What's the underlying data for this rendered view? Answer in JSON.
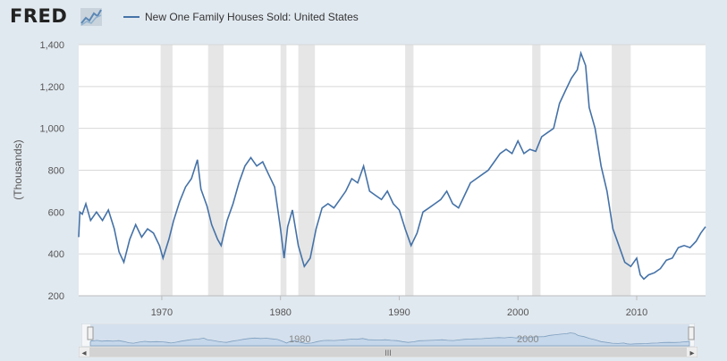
{
  "header": {
    "logo_text": "FRED",
    "legend_label": "New One Family Houses Sold: United States",
    "series_color": "#4572a7"
  },
  "recession_color": "#e6e6e6",
  "navigator": {
    "labels": [
      "1980",
      "2000"
    ]
  },
  "scrollbar": {
    "grip": "III",
    "left_arrow": "◂",
    "right_arrow": "▸"
  },
  "chart_data": {
    "type": "line",
    "title": "",
    "xlabel": "",
    "ylabel": "(Thousands)",
    "xlim": [
      1963.0,
      2015.8
    ],
    "ylim": [
      200,
      1400
    ],
    "yticks": [
      200,
      400,
      600,
      800,
      1000,
      1200,
      1400
    ],
    "ytick_labels": [
      "200",
      "400",
      "600",
      "800",
      "1,000",
      "1,200",
      "1,400"
    ],
    "xticks": [
      1970,
      1980,
      1990,
      2000,
      2010
    ],
    "xtick_labels": [
      "1970",
      "1980",
      "1990",
      "2000",
      "2010"
    ],
    "grid": true,
    "recessions": [
      [
        1969.9,
        1970.9
      ],
      [
        1973.9,
        1975.2
      ],
      [
        1980.0,
        1980.5
      ],
      [
        1981.5,
        1982.9
      ],
      [
        1990.5,
        1991.2
      ],
      [
        2001.2,
        2001.9
      ],
      [
        2007.9,
        2009.5
      ]
    ],
    "series": [
      {
        "name": "New One Family Houses Sold: United States",
        "x": [
          1963.0,
          1963.1,
          1963.3,
          1963.6,
          1964.0,
          1964.5,
          1965.0,
          1965.5,
          1966.0,
          1966.4,
          1966.8,
          1967.3,
          1967.8,
          1968.3,
          1968.8,
          1969.3,
          1969.8,
          1970.1,
          1970.6,
          1971.0,
          1971.5,
          1972.0,
          1972.5,
          1973.0,
          1973.3,
          1973.8,
          1974.2,
          1974.7,
          1975.0,
          1975.5,
          1976.0,
          1976.5,
          1977.0,
          1977.5,
          1978.0,
          1978.5,
          1979.0,
          1979.5,
          1980.0,
          1980.3,
          1980.6,
          1981.0,
          1981.5,
          1982.0,
          1982.5,
          1983.0,
          1983.5,
          1984.0,
          1984.5,
          1985.0,
          1985.5,
          1986.0,
          1986.5,
          1987.0,
          1987.5,
          1988.0,
          1988.5,
          1989.0,
          1989.5,
          1990.0,
          1990.5,
          1991.0,
          1991.5,
          1992.0,
          1992.5,
          1993.0,
          1993.5,
          1994.0,
          1994.5,
          1995.0,
          1995.5,
          1996.0,
          1996.5,
          1997.0,
          1997.5,
          1998.0,
          1998.5,
          1999.0,
          1999.5,
          2000.0,
          2000.5,
          2001.0,
          2001.5,
          2002.0,
          2002.5,
          2003.0,
          2003.5,
          2004.0,
          2004.5,
          2005.0,
          2005.3,
          2005.7,
          2006.0,
          2006.5,
          2007.0,
          2007.5,
          2008.0,
          2008.5,
          2009.0,
          2009.5,
          2010.0,
          2010.3,
          2010.6,
          2011.0,
          2011.5,
          2012.0,
          2012.5,
          2013.0,
          2013.5,
          2014.0,
          2014.5,
          2015.0,
          2015.4,
          2015.8
        ],
        "values": [
          480,
          600,
          590,
          640,
          560,
          600,
          560,
          610,
          520,
          410,
          360,
          470,
          540,
          480,
          520,
          500,
          440,
          380,
          470,
          560,
          650,
          720,
          760,
          850,
          710,
          630,
          540,
          470,
          440,
          560,
          640,
          740,
          820,
          860,
          820,
          840,
          780,
          720,
          520,
          380,
          530,
          610,
          440,
          340,
          380,
          520,
          620,
          640,
          620,
          660,
          700,
          760,
          740,
          820,
          700,
          680,
          660,
          700,
          640,
          610,
          520,
          440,
          500,
          600,
          620,
          640,
          660,
          700,
          640,
          620,
          680,
          740,
          760,
          780,
          800,
          840,
          880,
          900,
          880,
          940,
          880,
          900,
          890,
          960,
          980,
          1000,
          1120,
          1180,
          1240,
          1280,
          1360,
          1300,
          1100,
          1000,
          820,
          700,
          520,
          440,
          360,
          340,
          380,
          300,
          280,
          300,
          310,
          330,
          370,
          380,
          430,
          440,
          430,
          460,
          500,
          530
        ]
      }
    ]
  }
}
